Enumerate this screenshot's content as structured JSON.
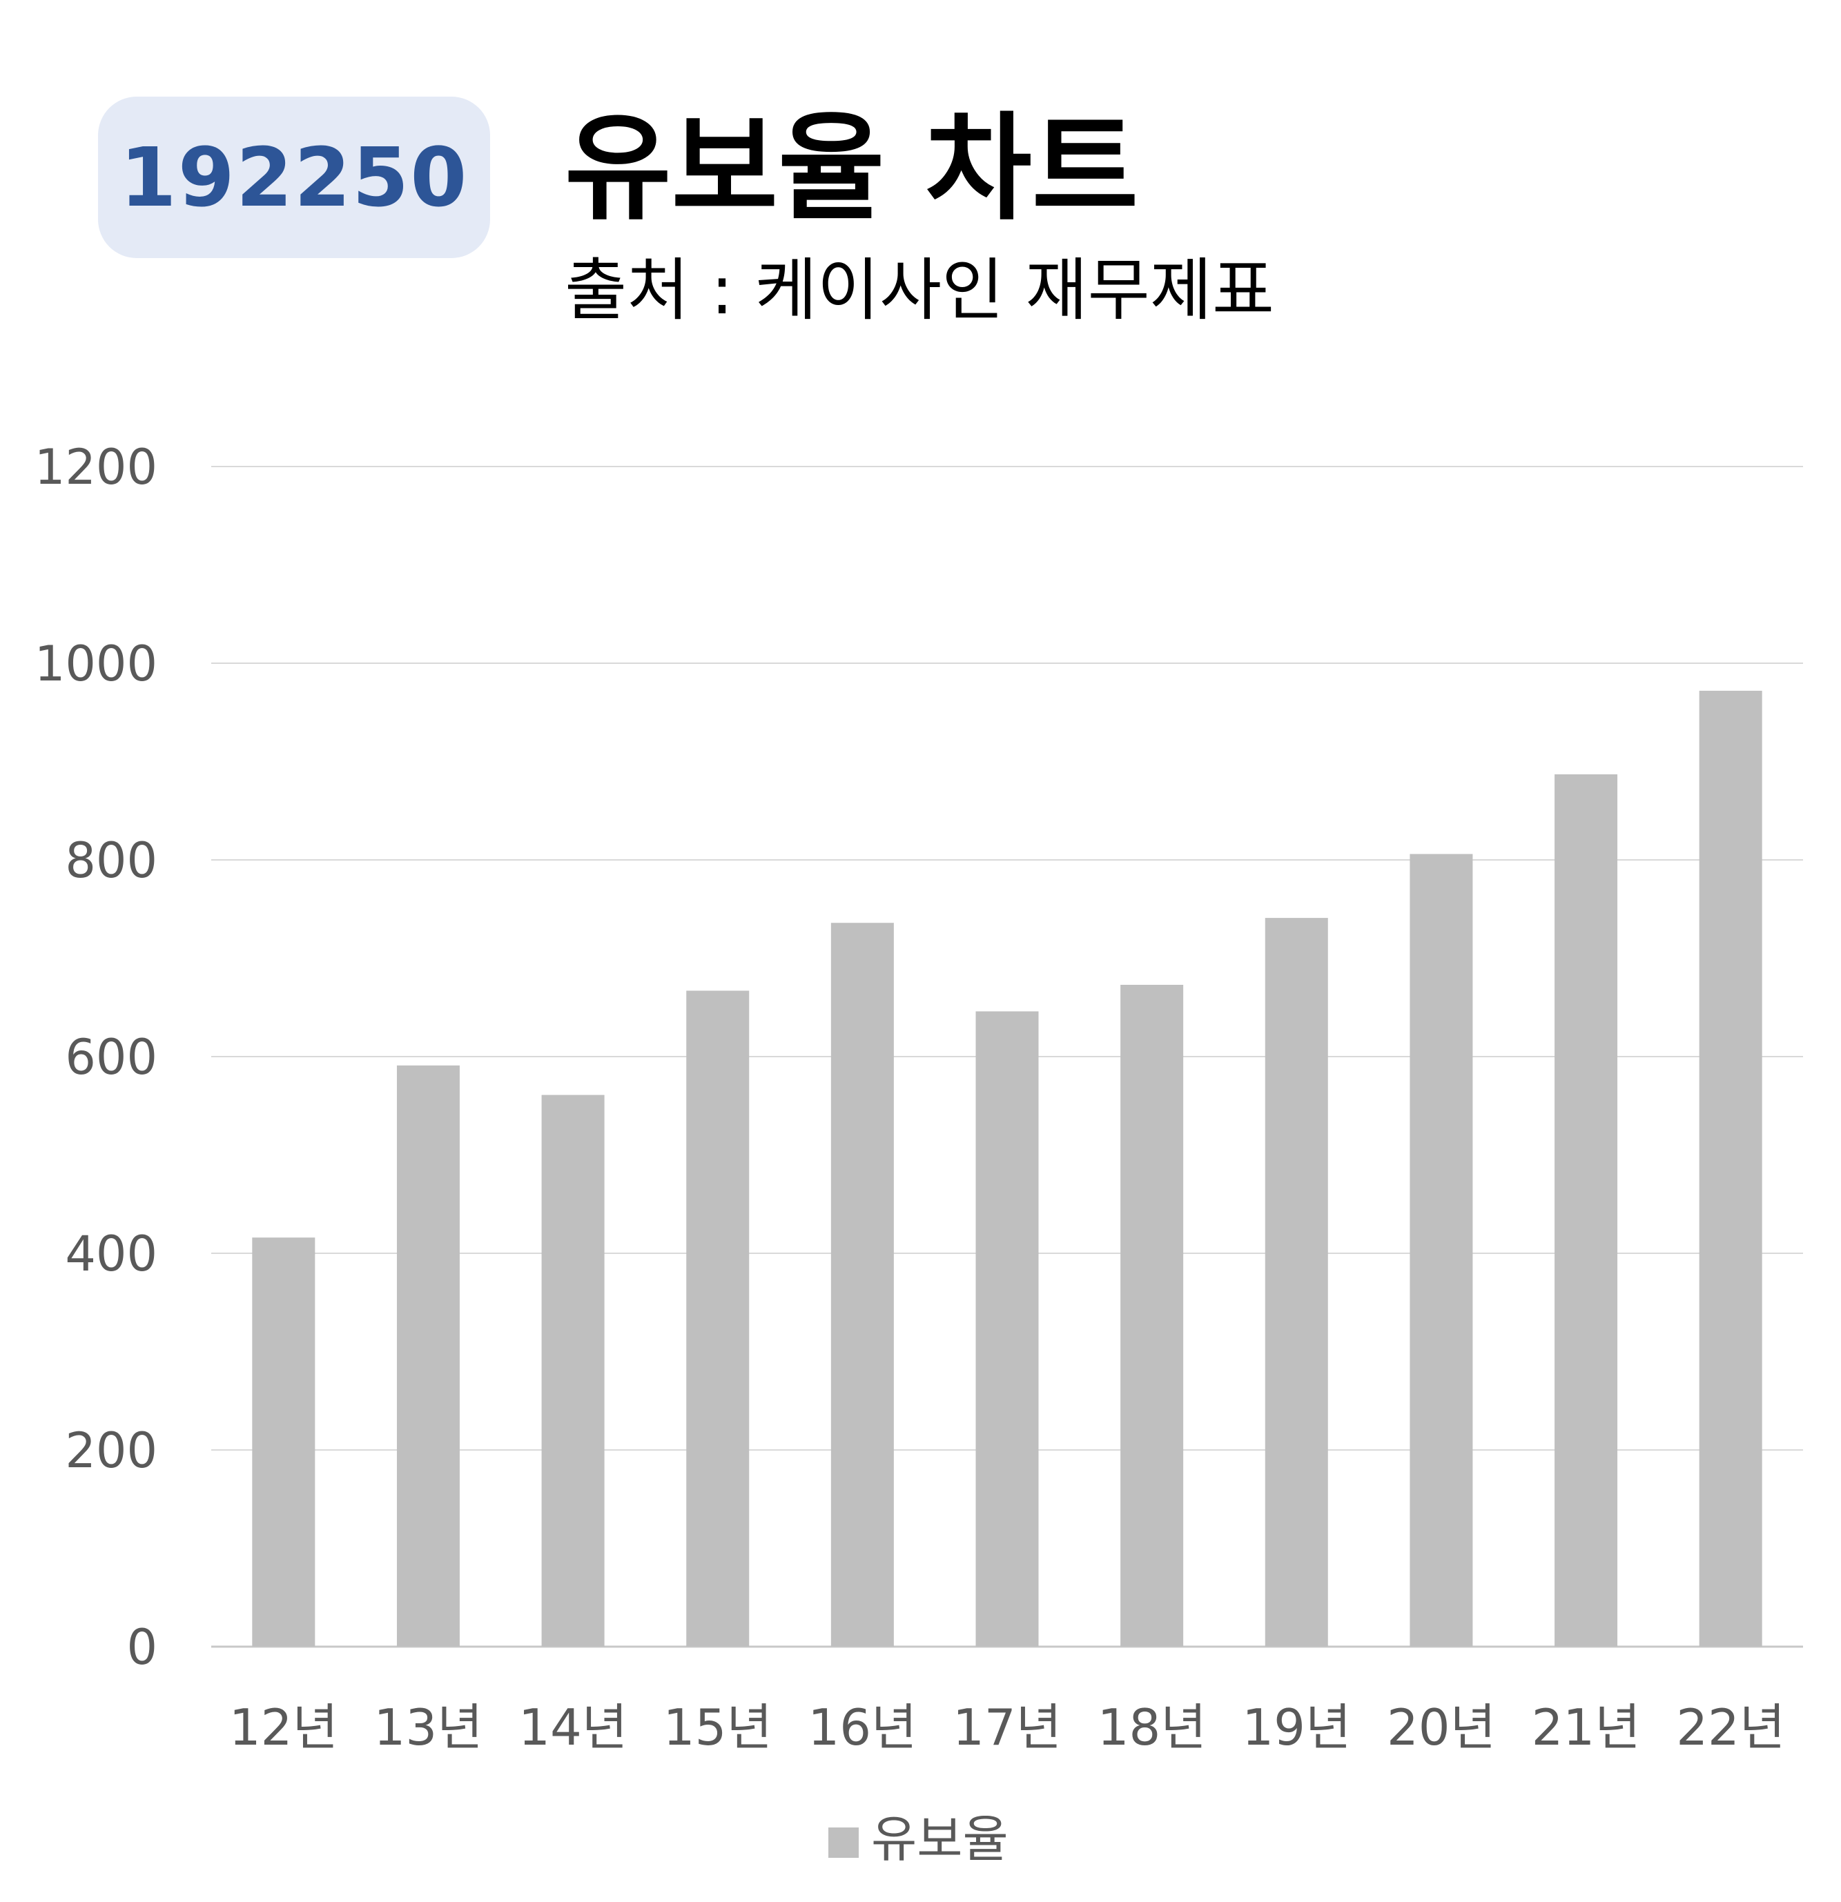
{
  "header": {
    "code": "192250",
    "title": "유보율 차트",
    "source": "출처 : 케이사인 재무제표"
  },
  "colors": {
    "bar": "#bfbfbf",
    "grid": "#d9d9d9",
    "badge_bg": "#e4eaf6",
    "badge_text": "#2d5597",
    "tick_text": "#595959"
  },
  "chart_data": {
    "type": "bar",
    "categories": [
      "12년",
      "13년",
      "14년",
      "15년",
      "16년",
      "17년",
      "18년",
      "19년",
      "20년",
      "21년",
      "22년"
    ],
    "series": [
      {
        "name": "유보율",
        "values": [
          416,
          591,
          561,
          667,
          736,
          646,
          673,
          741,
          806,
          887,
          972
        ]
      }
    ],
    "ylim": [
      0,
      1200
    ],
    "yticks": [
      0,
      200,
      400,
      600,
      800,
      1000,
      1200
    ],
    "grid": true,
    "legend": "bottom-center"
  }
}
